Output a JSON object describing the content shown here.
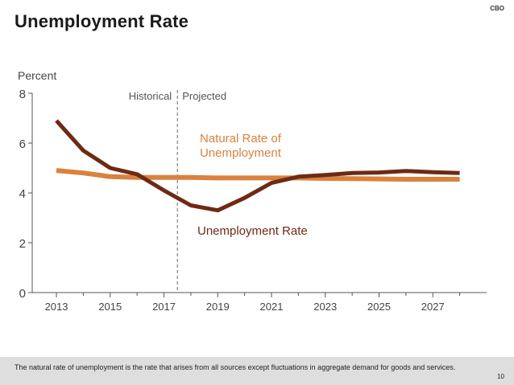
{
  "slide": {
    "title": "Unemployment Rate",
    "brand": "CBO",
    "footnote": "The natural rate of unemployment is the rate that arises from all sources except fluctuations in aggregate demand for goods and services.",
    "page_number": "10"
  },
  "chart_data": {
    "type": "line",
    "ylabel": "Percent",
    "xlim": [
      2012.1,
      2029.0
    ],
    "ylim": [
      0,
      8
    ],
    "yticks": [
      0,
      2,
      4,
      6,
      8
    ],
    "xticks": [
      2013,
      2015,
      2017,
      2019,
      2021,
      2023,
      2025,
      2027
    ],
    "minor_xticks": [
      2014,
      2016,
      2018,
      2020,
      2022,
      2024,
      2026,
      2028
    ],
    "divider": {
      "x": 2017.5,
      "left_label": "Historical",
      "right_label": "Projected"
    },
    "series": [
      {
        "name": "Natural Rate of Unemployment",
        "label_lines": [
          "Natural Rate of",
          "Unemployment"
        ],
        "color": "#d9823f",
        "x": [
          2013,
          2014,
          2015,
          2016,
          2017,
          2018,
          2019,
          2020,
          2021,
          2022,
          2023,
          2024,
          2025,
          2026,
          2027,
          2028
        ],
        "values": [
          4.9,
          4.8,
          4.65,
          4.62,
          4.62,
          4.62,
          4.6,
          4.6,
          4.6,
          4.6,
          4.58,
          4.57,
          4.56,
          4.55,
          4.55,
          4.55
        ]
      },
      {
        "name": "Unemployment Rate",
        "label_lines": [
          "Unemployment Rate"
        ],
        "color": "#6e2a14",
        "x": [
          2013,
          2014,
          2015,
          2016,
          2017,
          2018,
          2019,
          2020,
          2021,
          2022,
          2023,
          2024,
          2025,
          2026,
          2027,
          2028
        ],
        "values": [
          6.9,
          5.7,
          5.0,
          4.75,
          4.1,
          3.5,
          3.3,
          3.8,
          4.4,
          4.65,
          4.72,
          4.8,
          4.82,
          4.88,
          4.83,
          4.8
        ]
      }
    ]
  }
}
